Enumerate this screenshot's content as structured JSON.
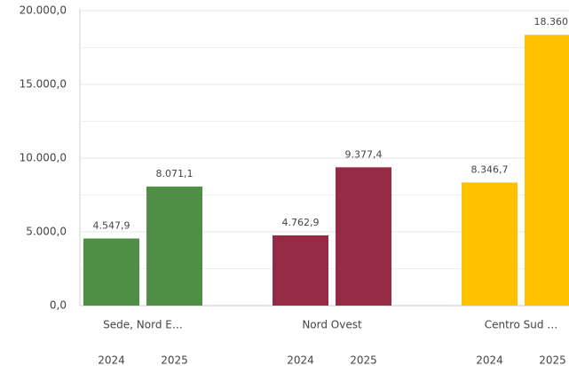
{
  "chart_data": {
    "type": "bar",
    "categories": [
      "Sede, Nord E…",
      "Nord Ovest",
      "Centro Sud …"
    ],
    "colors": [
      "#4e8f45",
      "#952a45",
      "#ffc000"
    ],
    "series": [
      {
        "name": "2024",
        "values": [
          4547.9,
          4762.9,
          8346.7
        ],
        "value_labels": [
          "4.547,9",
          "4.762,9",
          "8.346,7"
        ]
      },
      {
        "name": "2025",
        "values": [
          8071.1,
          9377.4,
          18360
        ],
        "value_labels": [
          "8.071,1",
          "9.377,4",
          "18.360,"
        ]
      }
    ],
    "ylim": [
      0,
      20000
    ],
    "yticks": [
      {
        "value": 0,
        "label": "0,0"
      },
      {
        "value": 5000,
        "label": "5.000,0"
      },
      {
        "value": 10000,
        "label": "10.000,0"
      },
      {
        "value": 15000,
        "label": "15.000,0"
      },
      {
        "value": 20000,
        "label": "20.000,0"
      }
    ],
    "minor_yticks": [
      2500,
      7500,
      12500,
      17500
    ],
    "grid": true
  }
}
